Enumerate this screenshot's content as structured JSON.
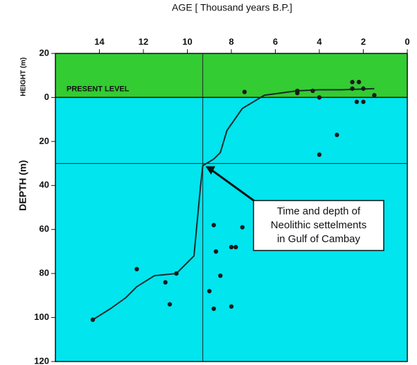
{
  "chart_data": {
    "type": "line",
    "title": "AGE [ Thousand years B.P.]",
    "y_label_upper": "HEIGHT (m)",
    "y_label_lower": "DEPTH (m)",
    "reference_label": "PRESENT LEVEL",
    "annotation": [
      "Time and depth of",
      "Neolithic settelments",
      "in  Gulf of Cambay"
    ],
    "xlim": [
      16,
      0
    ],
    "xticks": [
      14,
      12,
      10,
      8,
      6,
      4,
      2,
      0
    ],
    "ylim": [
      -120,
      20
    ],
    "yticks": [
      20,
      0,
      {
        "value": -20,
        "label": "20"
      },
      {
        "value": -40,
        "label": "40"
      },
      {
        "value": -60,
        "label": "60"
      },
      {
        "value": -80,
        "label": "80"
      },
      {
        "value": -100,
        "label": "100"
      },
      {
        "value": -120,
        "label": "120"
      }
    ],
    "above_color": "#33cc33",
    "below_color": "#00e5ee",
    "crosshair": {
      "x": 9.3,
      "y": -30
    },
    "series": [
      {
        "color": "#1a2a2a",
        "x": [
          14.3,
          13.5,
          12.8,
          12.3,
          11.5,
          10.5,
          9.7,
          9.4,
          9.3,
          8.8,
          8.5,
          8.2,
          7.5,
          6.5,
          5,
          4,
          3,
          1.5
        ],
        "values": [
          -101,
          -96,
          -91,
          -86,
          -81,
          -80,
          -72,
          -40,
          -31,
          -28,
          -25,
          -15,
          -5,
          1,
          3,
          3.5,
          3.5,
          4
        ]
      },
      {
        "type": "scatter",
        "color": "#1a1a1a",
        "x": [
          7.4,
          5,
          5,
          4.3,
          4,
          3.2,
          4,
          2.5,
          2.2,
          2.5,
          2,
          1.5,
          2.3,
          2,
          12.3,
          14.3,
          11,
          10.8,
          9,
          8.8,
          8,
          8.7,
          8.5,
          8.8,
          7.5,
          8,
          7.8,
          10.5
        ],
        "values": [
          2.5,
          3,
          2,
          3,
          0,
          -17,
          -26,
          7,
          7,
          4,
          4,
          1,
          -2,
          -2,
          -78,
          -101,
          -84,
          -94,
          -88,
          -96,
          -95,
          -70,
          -81,
          -58,
          -59,
          -68,
          -68,
          -80
        ]
      }
    ]
  }
}
